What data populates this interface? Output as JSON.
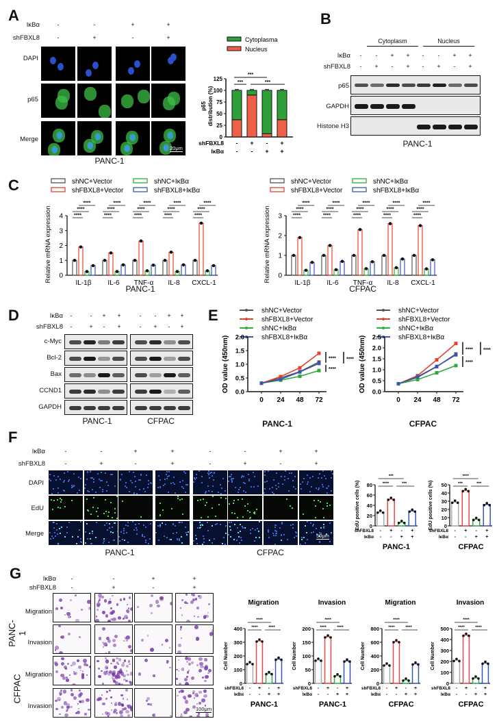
{
  "panels": {
    "A": {
      "letter": "A",
      "conditions": {
        "ikba_label": "IκBα",
        "shfbxl8_label": "shFBXL8",
        "ikba": [
          "-",
          "-",
          "+",
          "+"
        ],
        "shfbxl8": [
          "-",
          "+",
          "-",
          "+"
        ]
      },
      "rows": [
        "DAPI",
        "p65",
        "Merge"
      ],
      "scale_bar": "20μm",
      "caption": "PANC-1"
    },
    "B": {
      "letter": "B",
      "groups": [
        "Cytoplasm",
        "Nucleus"
      ],
      "conditions": {
        "ikba_label": "IκBα",
        "shfbxl8_label": "shFBXL8",
        "ikba": [
          "-",
          "-",
          "+",
          "+",
          "-",
          "-",
          "+",
          "+"
        ],
        "shfbxl8": [
          "-",
          "+",
          "-",
          "+",
          "-",
          "+",
          "-",
          "+"
        ]
      },
      "rows": [
        "p65",
        "GAPDH",
        "Histone H3"
      ],
      "caption": "PANC-1"
    },
    "C": {
      "letter": "C",
      "captions": [
        "PANC-1",
        "CFPAC"
      ]
    },
    "D": {
      "letter": "D",
      "conditions": {
        "ikba_label": "IκBα",
        "shfbxl8_label": "shFBXL8",
        "ikba": [
          "-",
          "-",
          "+",
          "+",
          "-",
          "-",
          "+",
          "+"
        ],
        "shfbxl8": [
          "-",
          "+",
          "-",
          "+",
          "-",
          "+",
          "-",
          "+"
        ]
      },
      "rows": [
        "c-Myc",
        "Bcl-2",
        "Bax",
        "CCND1",
        "GAPDH"
      ],
      "captions": [
        "PANC-1",
        "CFPAC"
      ]
    },
    "E": {
      "letter": "E",
      "captions": [
        "PANC-1",
        "CFPAC"
      ]
    },
    "F": {
      "letter": "F",
      "conditions": {
        "ikba_label": "IκBα",
        "shfbxl8_label": "shFBXL8",
        "ikba": [
          "-",
          "-",
          "+",
          "+",
          "-",
          "-",
          "+",
          "+"
        ],
        "shfbxl8": [
          "-",
          "+",
          "-",
          "+",
          "-",
          "+",
          "-",
          "+"
        ]
      },
      "rows": [
        "DAPI",
        "EdU",
        "Merge"
      ],
      "scale_bar": "50μm",
      "captions": [
        "PANC-1",
        "CFPAC"
      ]
    },
    "G": {
      "letter": "G",
      "conditions": {
        "ikba_label": "IκBα",
        "shfbxl8_label": "shFBXL8",
        "ikba": [
          "-",
          "-",
          "+",
          "+"
        ],
        "shfbxl8": [
          "-",
          "+",
          "-",
          "+"
        ]
      },
      "cell_lines": [
        "PANC-1",
        "CFPAC"
      ],
      "rows": [
        "Migration",
        "Invasion",
        "Migration",
        "Invasion"
      ],
      "scale_bar": "100μm"
    }
  },
  "colors": {
    "shNC_vector": "#555555",
    "shFBXL8_vector": "#e8402a",
    "shNC_ikba": "#2eaa3a",
    "shFBXL8_ikba": "#3a56b0",
    "bar_grey": "#aaaaaa",
    "bar_red": "#e84545",
    "bar_green": "#33aa44",
    "bar_blue": "#3355bb",
    "cytoplasma": "#2ea03a",
    "nucleus": "#ee6048"
  },
  "chart_data": [
    {
      "id": "A-bar",
      "type": "bar",
      "stacked": true,
      "ylabel": "p65 distribution (%)",
      "yticks": [
        0,
        25,
        50,
        75,
        100,
        125
      ],
      "ylim": [
        0,
        125
      ],
      "legend": [
        "Cytoplasma",
        "Nucleus"
      ],
      "categories": [
        "1",
        "2",
        "3",
        "4"
      ],
      "x_conditions": {
        "shFBXL8": [
          "-",
          "+",
          "-",
          "+"
        ],
        "IκBα": [
          "-",
          "-",
          "+",
          "+"
        ]
      },
      "series": [
        {
          "name": "Nucleus",
          "values": [
            37,
            90,
            7,
            37
          ]
        },
        {
          "name": "Cytoplasma",
          "values": [
            63,
            10,
            93,
            63
          ]
        }
      ],
      "significance": [
        "***",
        "***",
        "***"
      ]
    },
    {
      "id": "C-PANC1",
      "type": "bar",
      "title": "PANC-1",
      "ylabel": "Relative mRNA expression",
      "yticks": [
        0,
        1,
        2,
        3,
        4
      ],
      "ylim": [
        0,
        4
      ],
      "categories": [
        "IL-1β",
        "IL-6",
        "TNF-α",
        "IL-8",
        "CXCL-1"
      ],
      "series": [
        {
          "name": "shNC+Vector",
          "values": [
            1.0,
            1.0,
            1.0,
            1.0,
            1.0
          ]
        },
        {
          "name": "shFBXL8+Vector",
          "values": [
            1.9,
            1.5,
            2.3,
            1.55,
            3.5
          ]
        },
        {
          "name": "shNC+IκBα",
          "values": [
            0.25,
            0.25,
            0.3,
            0.25,
            0.3
          ]
        },
        {
          "name": "shFBXL8+IκBα",
          "values": [
            0.65,
            0.7,
            0.68,
            0.7,
            0.65
          ]
        }
      ],
      "significance": "****"
    },
    {
      "id": "C-CFPAC",
      "type": "bar",
      "title": "CFPAC",
      "ylabel": "Relative mRNA expression",
      "yticks": [
        0,
        1,
        2,
        3
      ],
      "ylim": [
        0,
        3
      ],
      "categories": [
        "IL-1β",
        "IL-6",
        "TNF-α",
        "IL-8",
        "CXCL-1"
      ],
      "series": [
        {
          "name": "shNC+Vector",
          "values": [
            1.0,
            1.0,
            1.0,
            1.0,
            1.0
          ]
        },
        {
          "name": "shFBXL8+Vector",
          "values": [
            1.9,
            1.5,
            2.3,
            2.6,
            2.5
          ]
        },
        {
          "name": "shNC+IκBα",
          "values": [
            0.25,
            0.28,
            0.33,
            0.38,
            0.32
          ]
        },
        {
          "name": "shFBXL8+IκBα",
          "values": [
            0.65,
            0.7,
            0.68,
            0.82,
            0.78
          ]
        }
      ],
      "significance": "****"
    },
    {
      "id": "E-PANC1",
      "type": "line",
      "title": "PANC-1",
      "ylabel": "OD value (450nm)",
      "x": [
        0,
        24,
        48,
        72
      ],
      "yticks": [
        0.0,
        0.5,
        1.0,
        1.5,
        2.0
      ],
      "ylim": [
        0,
        2.0
      ],
      "series": [
        {
          "name": "shNC+Vector",
          "values": [
            0.31,
            0.5,
            0.73,
            1.08
          ]
        },
        {
          "name": "shFBXL8+Vector",
          "values": [
            0.31,
            0.55,
            0.87,
            1.4
          ]
        },
        {
          "name": "shNC+IκBα",
          "values": [
            0.31,
            0.42,
            0.56,
            0.77
          ]
        },
        {
          "name": "shFBXL8+IκBα",
          "values": [
            0.31,
            0.45,
            0.72,
            1.03
          ]
        }
      ],
      "significance": [
        "****",
        "****",
        "****"
      ]
    },
    {
      "id": "E-CFPAC",
      "type": "line",
      "title": "CFPAC",
      "ylabel": "OD value (450nm)",
      "x": [
        0,
        24,
        48,
        72
      ],
      "yticks": [
        0.0,
        0.5,
        1.0,
        1.5,
        2.0,
        2.5
      ],
      "ylim": [
        0,
        2.5
      ],
      "series": [
        {
          "name": "shNC+Vector",
          "values": [
            0.36,
            0.65,
            1.14,
            1.72
          ]
        },
        {
          "name": "shFBXL8+Vector",
          "values": [
            0.36,
            0.73,
            1.45,
            2.2
          ]
        },
        {
          "name": "shNC+IκBα",
          "values": [
            0.36,
            0.55,
            0.86,
            1.19
          ]
        },
        {
          "name": "shFBXL8+IκBα",
          "values": [
            0.36,
            0.68,
            1.15,
            1.68
          ]
        }
      ],
      "significance": [
        "****",
        "****",
        "****"
      ]
    },
    {
      "id": "F-PANC1",
      "type": "bar",
      "title": "PANC-1",
      "ylabel": "EdU positive cells (%)",
      "yticks": [
        0,
        20,
        40,
        60,
        80
      ],
      "ylim": [
        0,
        80
      ],
      "categories": [
        "1",
        "2",
        "3",
        "4"
      ],
      "x_conditions": {
        "shFBXL8": [
          "-",
          "+",
          "-",
          "+"
        ],
        "IκBα": [
          "-",
          "-",
          "+",
          "+"
        ]
      },
      "values": [
        27,
        52,
        7,
        29
      ],
      "significance": [
        "***",
        "****",
        "***"
      ]
    },
    {
      "id": "F-CFPAC",
      "type": "bar",
      "title": "CFPAC",
      "ylabel": "EdU positive cells (%)",
      "yticks": [
        0,
        10,
        20,
        30,
        40,
        50
      ],
      "ylim": [
        0,
        50
      ],
      "categories": [
        "1",
        "2",
        "3",
        "4"
      ],
      "x_conditions": {
        "shFBXL8": [
          "-",
          "+",
          "-",
          "+"
        ],
        "IκBα": [
          "-",
          "-",
          "+",
          "+"
        ]
      },
      "values": [
        29,
        43,
        8,
        26
      ],
      "significance": [
        "****",
        "***",
        "***"
      ]
    },
    {
      "id": "G-PANC1-Migration",
      "type": "bar",
      "title": "Migration",
      "subtitle": "PANC-1",
      "ylabel": "Cell Number",
      "yticks": [
        0,
        100,
        200,
        300,
        400
      ],
      "ylim": [
        0,
        400
      ],
      "x_conditions": {
        "shFBXL8": [
          "-",
          "+",
          "-",
          "+"
        ],
        "IκBα": [
          "-",
          "-",
          "+",
          "+"
        ]
      },
      "values": [
        145,
        310,
        72,
        177
      ],
      "significance": [
        "****",
        "****",
        "****"
      ]
    },
    {
      "id": "G-PANC1-Invasion",
      "type": "bar",
      "title": "Invasion",
      "subtitle": "PANC-1",
      "ylabel": "Cell Number",
      "yticks": [
        0,
        50,
        100,
        150,
        200
      ],
      "ylim": [
        0,
        200
      ],
      "x_conditions": {
        "shFBXL8": [
          "-",
          "+",
          "-",
          "+"
        ],
        "IκBα": [
          "-",
          "-",
          "+",
          "+"
        ]
      },
      "values": [
        85,
        170,
        28,
        82
      ],
      "significance": [
        "****",
        "****",
        "****"
      ]
    },
    {
      "id": "G-CFPAC-Migration",
      "type": "bar",
      "title": "Migration",
      "subtitle": "CFPAC",
      "ylabel": "Cell Number",
      "yticks": [
        0,
        200,
        400,
        600,
        800
      ],
      "ylim": [
        0,
        800
      ],
      "x_conditions": {
        "shFBXL8": [
          "-",
          "+",
          "-",
          "+"
        ],
        "IκBα": [
          "-",
          "-",
          "+",
          "+"
        ]
      },
      "values": [
        270,
        610,
        50,
        285
      ],
      "significance": [
        "****",
        "****",
        "****"
      ]
    },
    {
      "id": "G-CFPAC-Invasion",
      "type": "bar",
      "title": "Invasion",
      "subtitle": "CFPAC",
      "ylabel": "Cell Number",
      "yticks": [
        0,
        100,
        200,
        300,
        400,
        500
      ],
      "ylim": [
        0,
        500
      ],
      "x_conditions": {
        "shFBXL8": [
          "-",
          "+",
          "-",
          "+"
        ],
        "IκBα": [
          "-",
          "-",
          "+",
          "+"
        ]
      },
      "values": [
        210,
        440,
        50,
        185
      ],
      "significance": [
        "****",
        "****",
        "****"
      ]
    }
  ]
}
